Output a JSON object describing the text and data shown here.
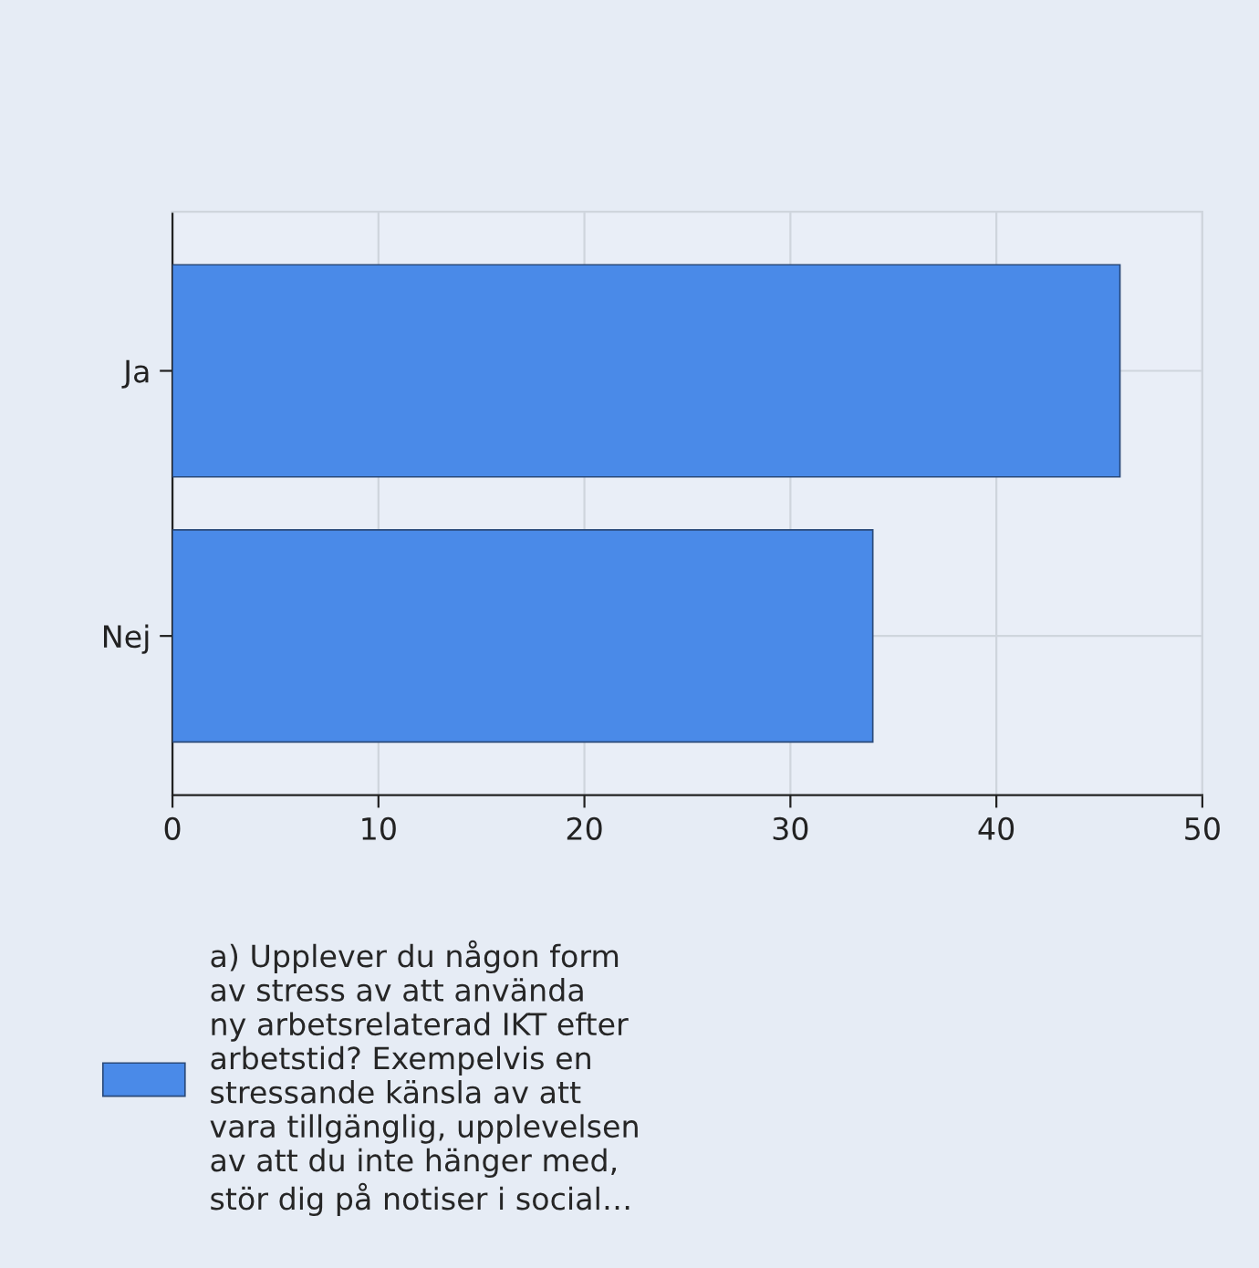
{
  "chart_data": {
    "type": "bar",
    "orientation": "horizontal",
    "categories": [
      "Ja",
      "Nej"
    ],
    "series": [
      {
        "name": "a) Upplever du någon form\nav stress av att använda\nny arbetsrelaterad IKT efter\narbetstid? Exempelvis en\nstressande känsla av att\nvara tillgänglig, upplevelsen\nav att du inte hänger med,\nstör dig på notiser i social…",
        "color": "#4a8ae8",
        "values": [
          46,
          34
        ]
      }
    ],
    "xlim": [
      0,
      50
    ],
    "xticks": [
      0,
      10,
      20,
      30,
      40,
      50
    ],
    "grid": true,
    "legend": "bottom left"
  }
}
